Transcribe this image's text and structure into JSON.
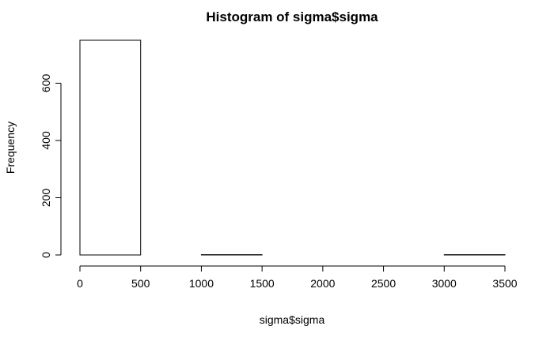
{
  "chart_data": {
    "type": "bar",
    "title": "Histogram of sigma$sigma",
    "xlabel": "sigma$sigma",
    "ylabel": "Frequency",
    "xlim": [
      0,
      3500
    ],
    "ylim": [
      0,
      750
    ],
    "bin_edges": [
      0,
      500,
      1000,
      1500,
      2000,
      2500,
      3000,
      3500
    ],
    "values": [
      750,
      0,
      1,
      0,
      0,
      0,
      1
    ],
    "x_ticks": [
      0,
      500,
      1000,
      1500,
      2000,
      2500,
      3000,
      3500
    ],
    "y_ticks": [
      0,
      200,
      400,
      600
    ],
    "grid": false
  }
}
